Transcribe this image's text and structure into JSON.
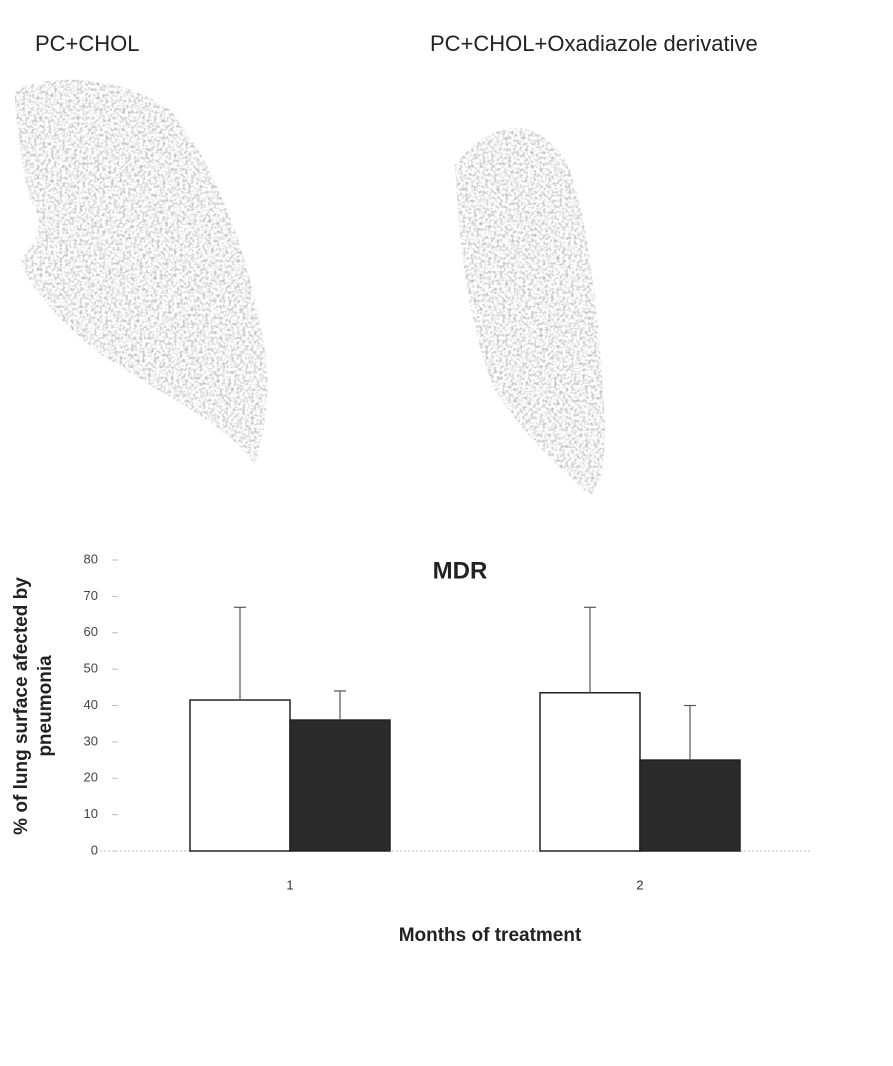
{
  "panels": [
    "PC+CHOL",
    "PC+CHOL+Oxadiazole derivative"
  ],
  "chart_data": {
    "type": "bar",
    "title": "MDR",
    "xlabel": "Months of treatment",
    "ylabel": [
      "% of lung surface afected by",
      "pneumonia"
    ],
    "categories": [
      "1",
      "2"
    ],
    "series": [
      {
        "color": "#ffffff",
        "values": [
          41.5,
          43.5
        ],
        "errors": [
          25.5,
          23.5
        ]
      },
      {
        "color": "#2b2b2b",
        "values": [
          36,
          25
        ],
        "errors": [
          8,
          15
        ]
      }
    ],
    "ylim": [
      0,
      80
    ],
    "yticks": [
      0,
      10,
      20,
      30,
      40,
      50,
      60,
      70,
      80
    ]
  }
}
